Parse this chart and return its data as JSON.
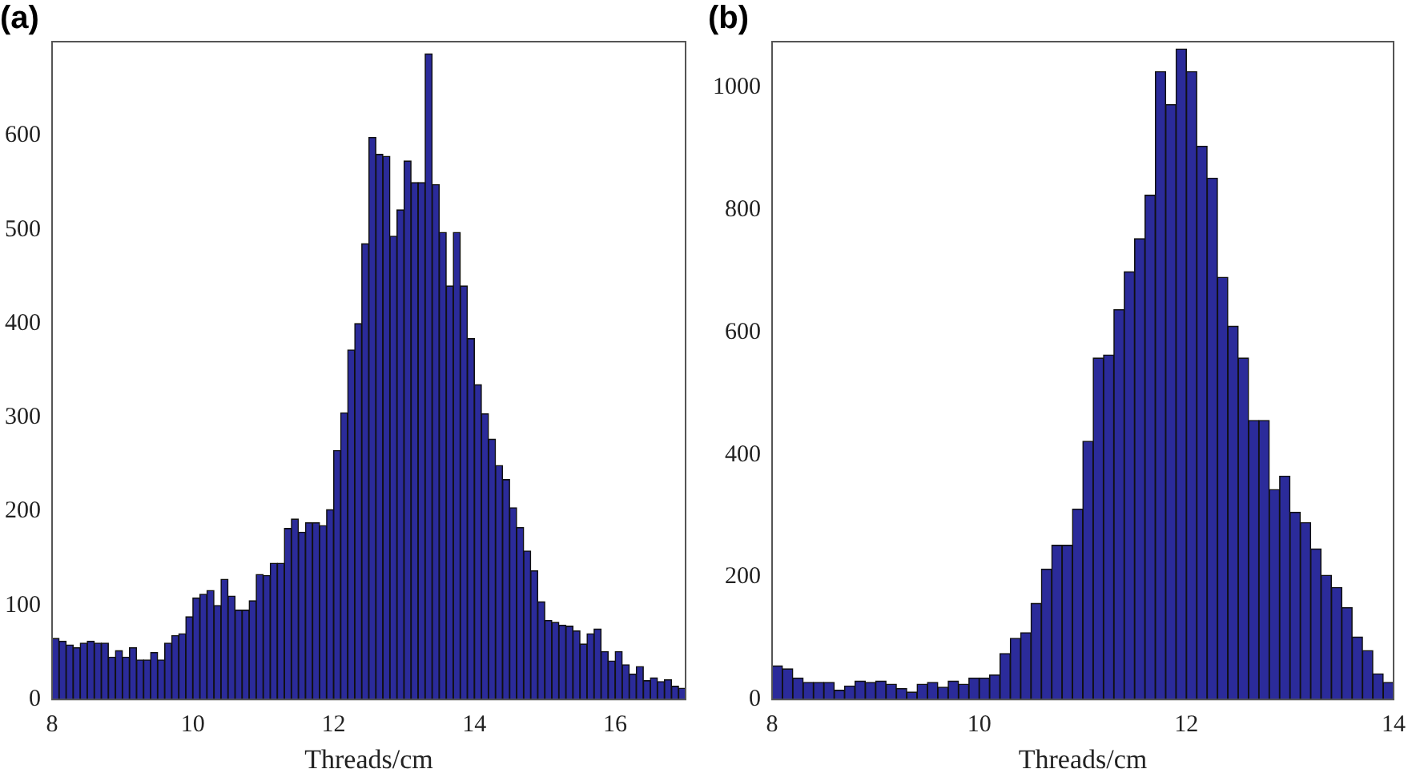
{
  "chart_data": [
    {
      "type": "histogram",
      "title": "(a)",
      "xlabel": "Threads/cm",
      "color": "#2b2b9a",
      "xlim": [
        8,
        17
      ],
      "xticks": [
        8,
        10,
        12,
        14,
        16
      ],
      "ylim": [
        0,
        700
      ],
      "yticks": [
        0,
        100,
        200,
        300,
        400,
        500,
        600
      ],
      "grid": false,
      "bins": [
        8,
        8.1,
        8.2,
        8.3,
        8.4,
        8.5,
        8.6,
        8.7,
        8.8,
        8.9,
        9,
        9.1,
        9.2,
        9.3,
        9.4,
        9.5,
        9.6,
        9.7,
        9.8,
        9.9,
        10,
        10.1,
        10.2,
        10.3,
        10.4,
        10.5,
        10.6,
        10.7,
        10.8,
        10.9,
        11,
        11.1,
        11.2,
        11.3,
        11.4,
        11.5,
        11.6,
        11.7,
        11.8,
        11.9,
        12,
        12.1,
        12.2,
        12.3,
        12.4,
        12.5,
        12.6,
        12.7,
        12.8,
        12.9,
        13,
        13.1,
        13.2,
        13.3,
        13.4,
        13.5,
        13.6,
        13.7,
        13.8,
        13.9,
        14,
        14.1,
        14.2,
        14.3,
        14.4,
        14.5,
        14.6,
        14.7,
        14.8,
        14.9,
        15,
        15.1,
        15.2,
        15.3,
        15.4,
        15.5,
        15.6,
        15.7,
        15.8,
        15.9,
        16,
        16.1,
        16.2,
        16.3,
        16.4,
        16.5,
        16.6,
        16.7,
        16.8,
        16.9,
        17
      ],
      "values": [
        65,
        62,
        58,
        55,
        60,
        62,
        60,
        60,
        45,
        52,
        45,
        55,
        42,
        42,
        50,
        42,
        60,
        68,
        70,
        88,
        108,
        112,
        116,
        100,
        128,
        110,
        95,
        95,
        105,
        133,
        132,
        145,
        145,
        182,
        192,
        178,
        188,
        188,
        185,
        202,
        265,
        305,
        372,
        400,
        485,
        598,
        580,
        578,
        493,
        521,
        573,
        550,
        550,
        687,
        548,
        497,
        440,
        497,
        440,
        384,
        335,
        304,
        277,
        249,
        234,
        204,
        183,
        158,
        137,
        104,
        84,
        82,
        79,
        78,
        73,
        59,
        70,
        75,
        51,
        41,
        51,
        37,
        27,
        35,
        20,
        23,
        19,
        21,
        14,
        12
      ]
    },
    {
      "type": "histogram",
      "title": "(b)",
      "xlabel": "Threads/cm",
      "color": "#2b2b9a",
      "xlim": [
        8,
        14
      ],
      "xticks": [
        8,
        10,
        12,
        14
      ],
      "ylim": [
        0,
        1075
      ],
      "yticks": [
        0,
        200,
        400,
        600,
        800,
        1000
      ],
      "grid": false,
      "bins": [
        8,
        8.1,
        8.2,
        8.3,
        8.4,
        8.5,
        8.6,
        8.7,
        8.8,
        8.9,
        9,
        9.1,
        9.2,
        9.3,
        9.4,
        9.5,
        9.6,
        9.7,
        9.8,
        9.9,
        10,
        10.1,
        10.2,
        10.3,
        10.4,
        10.5,
        10.6,
        10.7,
        10.8,
        10.9,
        11,
        11.1,
        11.2,
        11.3,
        11.4,
        11.5,
        11.6,
        11.7,
        11.8,
        11.9,
        12,
        12.1,
        12.2,
        12.3,
        12.4,
        12.5,
        12.6,
        12.7,
        12.8,
        12.9,
        13,
        13.1,
        13.2,
        13.3,
        13.4,
        13.5,
        13.6,
        13.7,
        13.8,
        13.9,
        14
      ],
      "values": [
        55,
        50,
        35,
        28,
        28,
        28,
        15,
        22,
        30,
        28,
        30,
        25,
        18,
        12,
        25,
        28,
        20,
        30,
        25,
        35,
        35,
        40,
        75,
        100,
        109,
        157,
        213,
        252,
        252,
        311,
        422,
        558,
        563,
        637,
        699,
        753,
        824,
        1026,
        972,
        1063,
        1026,
        904,
        852,
        690,
        610,
        558,
        456,
        456,
        343,
        365,
        306,
        289,
        246,
        203,
        183,
        150,
        102,
        80,
        42,
        28
      ]
    }
  ]
}
